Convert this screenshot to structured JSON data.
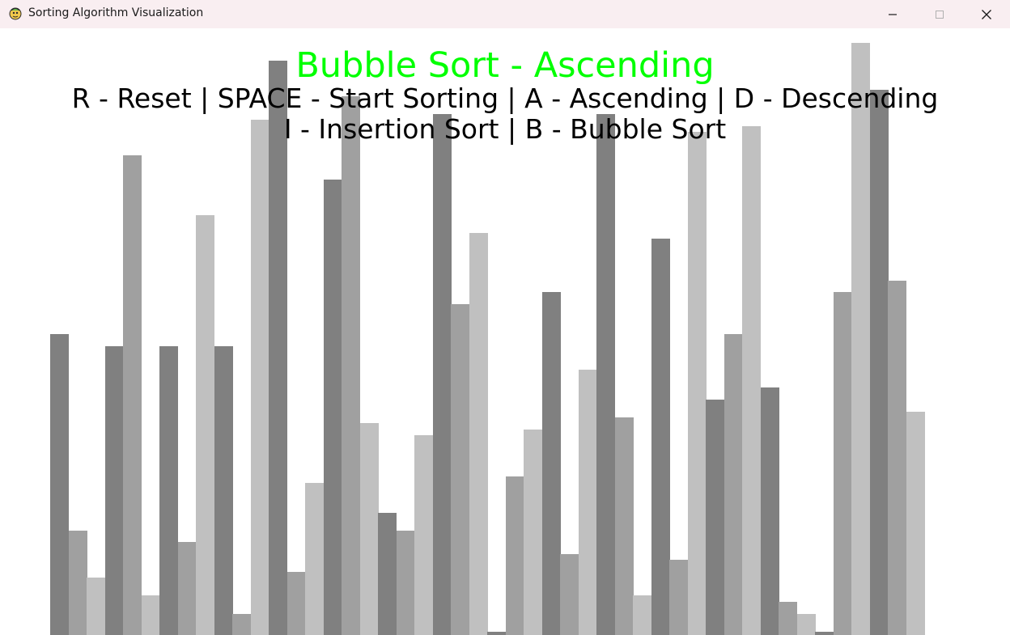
{
  "window": {
    "title": "Sorting Algorithm Visualization",
    "icon": "python-snake-icon"
  },
  "header": {
    "algorithm_title": "Bubble Sort - Ascending",
    "help_line_1": "R - Reset | SPACE - Start Sorting | A - Ascending | D - Descending",
    "help_line_2": "I - Insertion Sort | B - Bubble Sort"
  },
  "colors": {
    "title": "#00ff00",
    "help_text": "#000000",
    "bar_shades": [
      "#808080",
      "#a0a0a0",
      "#c0c0c0"
    ],
    "titlebar": "#f9eef1"
  },
  "bar_values": [
    253,
    88,
    48,
    243,
    403,
    33,
    243,
    78,
    353,
    243,
    18,
    433,
    483,
    53,
    128,
    383,
    453,
    178,
    103,
    88,
    168,
    438,
    278,
    338,
    3,
    133,
    173,
    288,
    68,
    223,
    438,
    183,
    33,
    333,
    63,
    423,
    198,
    253,
    428,
    208,
    28,
    18,
    3,
    288,
    498,
    458,
    298,
    188
  ],
  "bar_value_max": 510
}
